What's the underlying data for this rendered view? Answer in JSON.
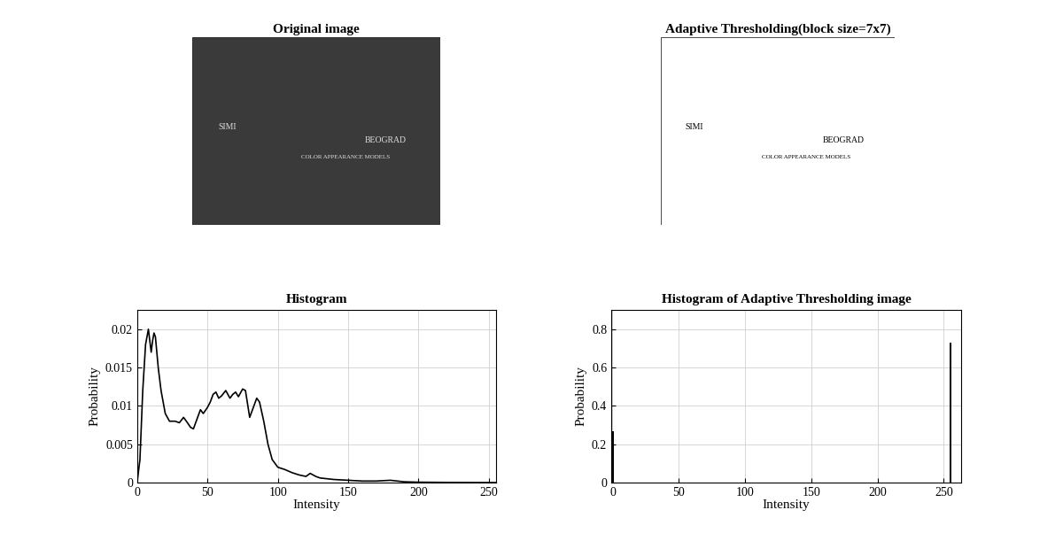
{
  "chart_data": [
    {
      "type": "image",
      "title": "Original image",
      "color": "#3a3a3a",
      "annotations": [
        "SIMI",
        "BEOGRAD",
        "COLOR APPEARANCE MODELS"
      ]
    },
    {
      "type": "image",
      "title": "Adaptive Thresholding(block size=7x7)",
      "color": "#ffffff",
      "annotations": [
        "SIMI",
        "BEOGRAD",
        "COLOR APPEARANCE MODELS"
      ]
    },
    {
      "type": "line",
      "title": "Histogram",
      "x_label": "Intensity",
      "y_label": "Probability",
      "x": [
        0,
        2,
        4,
        6,
        8,
        9,
        10,
        11,
        12,
        13,
        15,
        17,
        20,
        23,
        27,
        30,
        33,
        35,
        38,
        40,
        43,
        45,
        47,
        50,
        52,
        54,
        56,
        58,
        60,
        63,
        66,
        68,
        70,
        72,
        75,
        77,
        80,
        82,
        85,
        87,
        90,
        93,
        96,
        100,
        105,
        110,
        115,
        120,
        123,
        127,
        130,
        140,
        150,
        160,
        170,
        180,
        190,
        200,
        220,
        255
      ],
      "values": [
        0,
        0.003,
        0.012,
        0.018,
        0.02,
        0.0185,
        0.017,
        0.0185,
        0.0195,
        0.019,
        0.015,
        0.012,
        0.009,
        0.008,
        0.008,
        0.0078,
        0.0085,
        0.008,
        0.0072,
        0.007,
        0.0085,
        0.0095,
        0.009,
        0.0098,
        0.0105,
        0.0115,
        0.0118,
        0.011,
        0.0113,
        0.012,
        0.011,
        0.0115,
        0.0118,
        0.0112,
        0.0122,
        0.012,
        0.0085,
        0.0095,
        0.011,
        0.0105,
        0.008,
        0.005,
        0.003,
        0.002,
        0.0017,
        0.0013,
        0.001,
        0.0008,
        0.0012,
        0.0008,
        0.0006,
        0.0004,
        0.0003,
        0.0002,
        0.0002,
        0.0003,
        0.0001,
        5e-05,
        2e-05,
        0
      ],
      "color": "#000000",
      "xlim": [
        0,
        255
      ],
      "xticks": [
        0,
        50,
        100,
        150,
        200,
        250
      ],
      "ylim": [
        0,
        0.0225
      ],
      "yticks": [
        0,
        0.005,
        0.01,
        0.015,
        0.02
      ],
      "grid": true
    },
    {
      "type": "bar",
      "title": "Histogram of Adaptive Thresholding image",
      "x_label": "Intensity",
      "y_label": "Probability",
      "x": [
        0,
        255
      ],
      "values": [
        0.27,
        0.73
      ],
      "color": "#000000",
      "xlim": [
        -1,
        263
      ],
      "xticks": [
        0,
        50,
        100,
        150,
        200,
        250
      ],
      "ylim": [
        0,
        0.9
      ],
      "yticks": [
        0,
        0.2,
        0.4,
        0.6,
        0.8
      ],
      "grid": true
    }
  ]
}
